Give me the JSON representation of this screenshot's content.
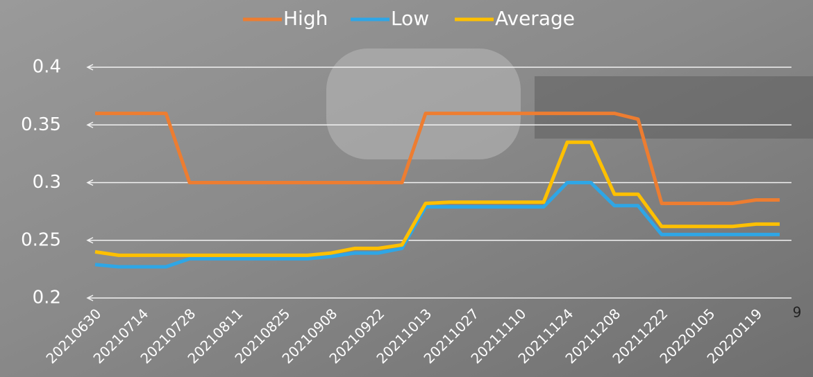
{
  "chart_data": {
    "type": "line",
    "categories": [
      "20210630",
      null,
      "20210714",
      null,
      "20210728",
      null,
      "20210811",
      null,
      "20210825",
      null,
      "20210908",
      null,
      "20210922",
      null,
      "20211013",
      null,
      "20211027",
      null,
      "20211110",
      null,
      "20211124",
      null,
      "20211208",
      null,
      "20211222",
      null,
      "20220105",
      null,
      "20220119",
      null
    ],
    "series": [
      {
        "name": "High",
        "color": "#ed7d31",
        "values": [
          0.36,
          0.36,
          0.36,
          0.36,
          0.3,
          0.3,
          0.3,
          0.3,
          0.3,
          0.3,
          0.3,
          0.3,
          0.3,
          0.3,
          0.36,
          0.36,
          0.36,
          0.36,
          0.36,
          0.36,
          0.36,
          0.36,
          0.36,
          0.355,
          0.282,
          0.282,
          0.282,
          0.282,
          0.285,
          0.285
        ]
      },
      {
        "name": "Low",
        "color": "#2ea6e6",
        "values": [
          0.229,
          0.227,
          0.227,
          0.227,
          0.234,
          0.234,
          0.234,
          0.234,
          0.234,
          0.234,
          0.236,
          0.239,
          0.239,
          0.243,
          0.279,
          0.279,
          0.279,
          0.279,
          0.279,
          0.279,
          0.3,
          0.3,
          0.28,
          0.28,
          0.255,
          0.255,
          0.255,
          0.255,
          0.255,
          0.255
        ]
      },
      {
        "name": "Average",
        "color": "#ffc000",
        "values": [
          0.24,
          0.237,
          0.237,
          0.237,
          0.237,
          0.237,
          0.237,
          0.237,
          0.237,
          0.237,
          0.239,
          0.243,
          0.243,
          0.246,
          0.282,
          0.283,
          0.283,
          0.283,
          0.283,
          0.283,
          0.335,
          0.335,
          0.29,
          0.29,
          0.262,
          0.262,
          0.262,
          0.262,
          0.264,
          0.264
        ]
      }
    ],
    "ylim": [
      0.2,
      0.4
    ],
    "yticks": [
      0.2,
      0.25,
      0.3,
      0.35,
      0.4
    ],
    "grid": true,
    "legend": "top",
    "page_number": "9"
  }
}
